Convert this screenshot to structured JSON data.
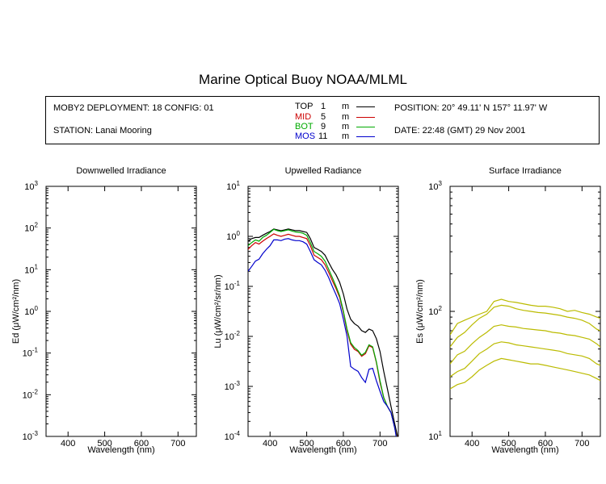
{
  "title": "Marine Optical Buoy NOAA/MLML",
  "info": {
    "deployment": "MOBY2 DEPLOYMENT: 18 CONFIG: 01",
    "station": "STATION: Lanai Mooring",
    "position": "POSITION: 20° 49.11' N   157° 11.97' W",
    "date": "DATE: 22:48 (GMT) 29 Nov 2001",
    "legend": [
      {
        "label": "TOP",
        "value": "1",
        "unit": "m",
        "color": "#000000"
      },
      {
        "label": "MID",
        "value": "5",
        "unit": "m",
        "color": "#cc0000"
      },
      {
        "label": "BOT",
        "value": "9",
        "unit": "m",
        "color": "#00aa00"
      },
      {
        "label": "MOS",
        "value": "11",
        "unit": "m",
        "color": "#0000cc"
      }
    ]
  },
  "chart_data": [
    {
      "type": "line",
      "title": "Downwelled Irradiance",
      "xlabel": "Wavelength (nm)",
      "ylabel": "Ed  (μW/cm²/nm)",
      "xlim": [
        340,
        750
      ],
      "ylim": [
        0.001,
        1000
      ],
      "yscale": "log",
      "xticks": [
        400,
        500,
        600,
        700
      ],
      "yticks": [
        {
          "v": 0.001,
          "e": "-3"
        },
        {
          "v": 0.01,
          "e": "-2"
        },
        {
          "v": 0.1,
          "e": "-1"
        },
        {
          "v": 1,
          "e": "0"
        },
        {
          "v": 10,
          "e": "1"
        },
        {
          "v": 100,
          "e": "2"
        },
        {
          "v": 1000,
          "e": "3"
        }
      ],
      "series": []
    },
    {
      "type": "line",
      "title": "Upwelled Radiance",
      "xlabel": "Wavelength (nm)",
      "ylabel": "Lu  (μW/cm²/sr/nm)",
      "xlim": [
        340,
        750
      ],
      "ylim": [
        0.0001,
        10
      ],
      "yscale": "log",
      "xticks": [
        400,
        500,
        600,
        700
      ],
      "yticks": [
        {
          "v": 0.0001,
          "e": "-4"
        },
        {
          "v": 0.001,
          "e": "-3"
        },
        {
          "v": 0.01,
          "e": "-2"
        },
        {
          "v": 0.1,
          "e": "-1"
        },
        {
          "v": 1,
          "e": "0"
        },
        {
          "v": 10,
          "e": "1"
        }
      ],
      "series": [
        {
          "name": "TOP",
          "color": "#000000",
          "x": [
            340,
            350,
            360,
            370,
            380,
            390,
            400,
            410,
            420,
            430,
            440,
            450,
            460,
            470,
            480,
            490,
            500,
            510,
            520,
            530,
            540,
            550,
            560,
            570,
            580,
            590,
            600,
            610,
            620,
            630,
            640,
            650,
            660,
            670,
            680,
            690,
            700,
            710,
            720,
            730,
            740,
            748
          ],
          "y": [
            0.8,
            0.9,
            0.95,
            0.95,
            1.05,
            1.15,
            1.25,
            1.4,
            1.35,
            1.3,
            1.35,
            1.4,
            1.35,
            1.3,
            1.3,
            1.25,
            1.2,
            0.9,
            0.6,
            0.55,
            0.5,
            0.42,
            0.3,
            0.22,
            0.17,
            0.12,
            0.07,
            0.035,
            0.022,
            0.018,
            0.016,
            0.013,
            0.012,
            0.014,
            0.013,
            0.009,
            0.005,
            0.002,
            0.0009,
            0.0004,
            0.00018,
            0.0001
          ]
        },
        {
          "name": "MID",
          "color": "#cc0000",
          "x": [
            340,
            350,
            360,
            370,
            380,
            390,
            400,
            410,
            420,
            430,
            440,
            450,
            460,
            470,
            480,
            490,
            500,
            510,
            520,
            530,
            540,
            550,
            560,
            570,
            580,
            590,
            600,
            610,
            620,
            630,
            640,
            650,
            660,
            670,
            680,
            690,
            700,
            710,
            720,
            730,
            740,
            746
          ],
          "y": [
            0.55,
            0.65,
            0.75,
            0.7,
            0.8,
            0.9,
            1.0,
            1.12,
            1.05,
            1.0,
            1.05,
            1.1,
            1.05,
            1.0,
            1.0,
            0.95,
            0.9,
            0.65,
            0.42,
            0.38,
            0.34,
            0.27,
            0.19,
            0.13,
            0.09,
            0.06,
            0.03,
            0.013,
            0.007,
            0.0055,
            0.005,
            0.004,
            0.0045,
            0.0065,
            0.006,
            0.003,
            0.0012,
            0.0006,
            0.0004,
            0.0003,
            0.00015,
            0.0001
          ]
        },
        {
          "name": "BOT",
          "color": "#00aa00",
          "x": [
            340,
            350,
            360,
            370,
            380,
            390,
            400,
            410,
            420,
            430,
            440,
            450,
            460,
            470,
            480,
            490,
            500,
            510,
            520,
            530,
            540,
            550,
            560,
            570,
            580,
            590,
            600,
            610,
            620,
            630,
            640,
            650,
            660,
            670,
            680,
            690,
            700,
            710,
            720,
            730,
            740,
            745
          ],
          "y": [
            0.65,
            0.75,
            0.85,
            0.8,
            0.95,
            1.05,
            1.2,
            1.38,
            1.3,
            1.25,
            1.3,
            1.35,
            1.28,
            1.22,
            1.2,
            1.15,
            1.05,
            0.75,
            0.5,
            0.45,
            0.4,
            0.32,
            0.22,
            0.15,
            0.1,
            0.065,
            0.032,
            0.014,
            0.0075,
            0.006,
            0.0052,
            0.0042,
            0.0048,
            0.0068,
            0.0062,
            0.0031,
            0.0013,
            0.0006,
            0.0004,
            0.0003,
            0.00015,
            0.0001
          ]
        },
        {
          "name": "MOS",
          "color": "#0000cc",
          "x": [
            340,
            350,
            360,
            370,
            380,
            390,
            400,
            410,
            420,
            430,
            440,
            450,
            460,
            470,
            480,
            490,
            500,
            510,
            520,
            530,
            540,
            550,
            560,
            570,
            580,
            590,
            600,
            610,
            620,
            630,
            640,
            650,
            660,
            670,
            680,
            690,
            700,
            710,
            720,
            730,
            740,
            744
          ],
          "y": [
            0.2,
            0.25,
            0.32,
            0.35,
            0.45,
            0.55,
            0.65,
            0.85,
            0.85,
            0.82,
            0.88,
            0.9,
            0.85,
            0.82,
            0.82,
            0.78,
            0.7,
            0.5,
            0.34,
            0.3,
            0.27,
            0.21,
            0.15,
            0.1,
            0.068,
            0.045,
            0.022,
            0.01,
            0.0025,
            0.0022,
            0.002,
            0.0015,
            0.0012,
            0.0022,
            0.0023,
            0.0013,
            0.0008,
            0.0005,
            0.0004,
            0.0003,
            0.00015,
            0.0001
          ]
        }
      ]
    },
    {
      "type": "line",
      "title": "Surface Irradiance",
      "xlabel": "Wavelength (nm)",
      "ylabel": "Es  (μW/cm²/nm)",
      "xlim": [
        340,
        750
      ],
      "ylim": [
        10,
        1000
      ],
      "yscale": "log",
      "xticks": [
        400,
        500,
        600,
        700
      ],
      "yticks": [
        {
          "v": 10,
          "e": "1"
        },
        {
          "v": 100,
          "e": "2"
        },
        {
          "v": 1000,
          "e": "3"
        }
      ],
      "color": "#bbbb00",
      "series": [
        {
          "x": [
            340,
            360,
            380,
            400,
            420,
            440,
            460,
            480,
            500,
            520,
            540,
            560,
            580,
            600,
            620,
            640,
            660,
            680,
            700,
            720,
            740,
            750
          ],
          "y": [
            65,
            80,
            85,
            90,
            95,
            100,
            120,
            125,
            120,
            118,
            115,
            112,
            110,
            110,
            108,
            105,
            100,
            102,
            98,
            95,
            90,
            88
          ]
        },
        {
          "x": [
            340,
            360,
            380,
            400,
            420,
            440,
            460,
            480,
            500,
            520,
            540,
            560,
            580,
            600,
            620,
            640,
            660,
            680,
            700,
            720,
            740,
            750
          ],
          "y": [
            52,
            62,
            68,
            78,
            88,
            95,
            108,
            112,
            110,
            105,
            102,
            100,
            98,
            97,
            95,
            93,
            90,
            88,
            85,
            80,
            72,
            70
          ]
        },
        {
          "x": [
            340,
            360,
            380,
            400,
            420,
            440,
            460,
            480,
            500,
            520,
            540,
            560,
            580,
            600,
            620,
            640,
            660,
            680,
            700,
            720,
            740,
            750
          ],
          "y": [
            38,
            45,
            48,
            55,
            62,
            68,
            76,
            78,
            76,
            75,
            73,
            72,
            71,
            70,
            68,
            67,
            65,
            64,
            62,
            60,
            55,
            52
          ]
        },
        {
          "x": [
            340,
            360,
            380,
            400,
            420,
            440,
            460,
            480,
            500,
            520,
            540,
            560,
            580,
            600,
            620,
            640,
            660,
            680,
            700,
            720,
            740,
            750
          ],
          "y": [
            30,
            33,
            35,
            40,
            46,
            50,
            55,
            57,
            56,
            54,
            53,
            52,
            51,
            50,
            49,
            48,
            46,
            45,
            44,
            42,
            38,
            37
          ]
        },
        {
          "x": [
            340,
            360,
            380,
            400,
            420,
            440,
            460,
            480,
            500,
            520,
            540,
            560,
            580,
            600,
            620,
            640,
            660,
            680,
            700,
            720,
            740,
            750
          ],
          "y": [
            24,
            26,
            27,
            30,
            34,
            37,
            40,
            42,
            41,
            40,
            39,
            38,
            38,
            37,
            36,
            35,
            34,
            33,
            32,
            31,
            29,
            28
          ]
        }
      ]
    }
  ]
}
